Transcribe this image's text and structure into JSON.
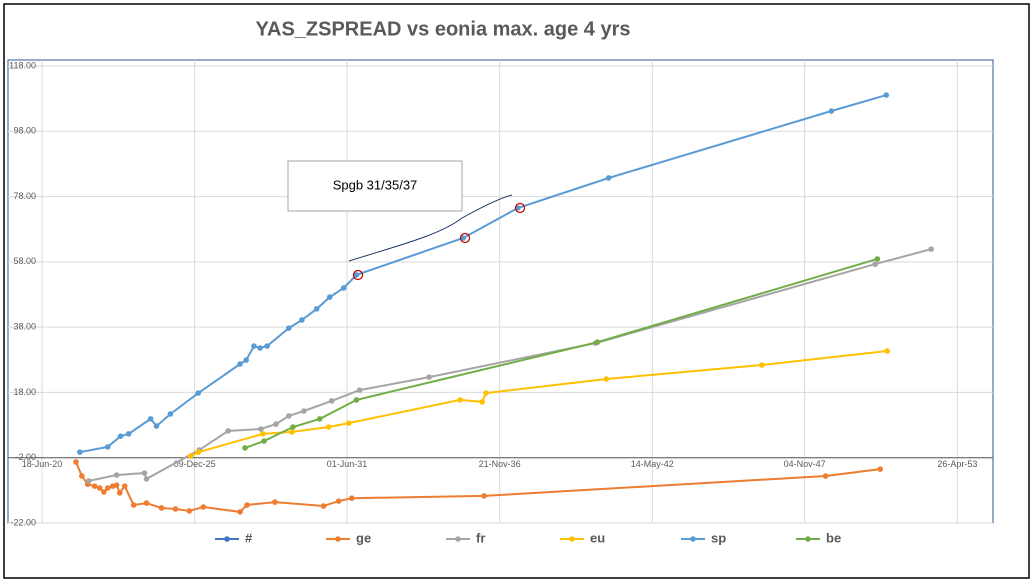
{
  "chart_data": {
    "type": "line",
    "title": "YAS_ZSPREAD vs eonia max. age 4 yrs",
    "annotation": "Spgb 31/35/37",
    "xlim": [
      2020.46,
      2054.6
    ],
    "xticks": [
      {
        "value": 2020.46,
        "label": "18-Jun-20"
      },
      {
        "value": 2025.94,
        "label": "09-Dec-25"
      },
      {
        "value": 2031.41,
        "label": "01-Jun-31"
      },
      {
        "value": 2036.89,
        "label": "21-Nov-36"
      },
      {
        "value": 2042.37,
        "label": "14-May-42"
      },
      {
        "value": 2047.84,
        "label": "04-Nov-47"
      },
      {
        "value": 2053.32,
        "label": "26-Apr-53"
      }
    ],
    "ylim": [
      -22,
      118
    ],
    "yticks": [
      {
        "value": -22,
        "label": "-22.00"
      },
      {
        "value": -2,
        "label": "-2.00"
      },
      {
        "value": 18,
        "label": "18.00"
      },
      {
        "value": 38,
        "label": "38.00"
      },
      {
        "value": 58,
        "label": "58.00"
      },
      {
        "value": 78,
        "label": "78.00"
      },
      {
        "value": 98,
        "label": "98.00"
      },
      {
        "value": 118,
        "label": "118.00"
      }
    ],
    "grid": true,
    "legend": "bottom",
    "series": [
      {
        "name": "#",
        "color": "#4472c4",
        "x": [],
        "values": []
      },
      {
        "name": "ge",
        "color": "#ed7d31",
        "x": [
          2021.68,
          2021.89,
          2022.1,
          2022.35,
          2022.53,
          2022.68,
          2022.82,
          2023.0,
          2023.14,
          2023.25,
          2023.43,
          2023.75,
          2024.21,
          2024.75,
          2025.25,
          2025.75,
          2026.25,
          2027.57,
          2027.82,
          2028.82,
          2030.57,
          2031.11,
          2031.58,
          2036.33,
          2048.59,
          2050.55
        ],
        "values": [
          -3.3,
          -7.6,
          -10.1,
          -10.7,
          -11.3,
          -12.5,
          -11.3,
          -10.7,
          -10.4,
          -12.8,
          -10.7,
          -16.5,
          -15.9,
          -17.4,
          -17.7,
          -18.3,
          -17.1,
          -18.6,
          -16.5,
          -15.6,
          -16.8,
          -15.3,
          -14.4,
          -13.7,
          -7.6,
          -5.5
        ]
      },
      {
        "name": "fr",
        "color": "#a5a5a5",
        "x": [
          2022.14,
          2023.14,
          2024.14,
          2024.21,
          2026.11,
          2027.14,
          2028.32,
          2028.86,
          2029.32,
          2029.86,
          2030.86,
          2031.86,
          2034.36,
          2040.33,
          2050.37,
          2052.38
        ],
        "values": [
          -9.1,
          -7.3,
          -6.7,
          -8.5,
          0.4,
          6.2,
          6.8,
          8.3,
          10.8,
          12.3,
          15.4,
          18.7,
          22.7,
          33.1,
          57.3,
          61.9
        ]
      },
      {
        "name": "eu",
        "color": "#ffc000",
        "x": [
          2025.79,
          2026.07,
          2028.39,
          2029.43,
          2030.75,
          2031.47,
          2035.47,
          2036.26,
          2036.4,
          2040.72,
          2046.3,
          2050.8
        ],
        "values": [
          -1.5,
          -0.3,
          5.3,
          5.9,
          7.4,
          8.6,
          15.7,
          15.1,
          17.8,
          22.1,
          26.4,
          30.7
        ]
      },
      {
        "name": "sp",
        "color": "#5b9bd5",
        "x": [
          2021.82,
          2022.82,
          2023.28,
          2023.57,
          2024.36,
          2024.57,
          2025.07,
          2026.07,
          2027.57,
          2027.79,
          2028.07,
          2028.29,
          2028.54,
          2029.32,
          2029.79,
          2030.32,
          2030.79,
          2031.29,
          2031.75,
          2035.58,
          2037.54,
          2040.8,
          2048.8,
          2050.77
        ],
        "values": [
          -0.3,
          1.3,
          4.6,
          5.3,
          9.9,
          7.7,
          11.4,
          17.8,
          26.7,
          27.9,
          32.2,
          31.6,
          32.2,
          37.7,
          40.2,
          43.6,
          47.2,
          50.0,
          54.0,
          65.3,
          74.5,
          83.7,
          104.2,
          109.1
        ]
      },
      {
        "name": "be",
        "color": "#70ad47",
        "x": [
          2027.75,
          2028.43,
          2029.47,
          2030.43,
          2031.75,
          2040.4,
          2050.45
        ],
        "values": [
          1.0,
          3.1,
          7.4,
          9.9,
          15.7,
          33.4,
          58.9
        ]
      }
    ]
  }
}
